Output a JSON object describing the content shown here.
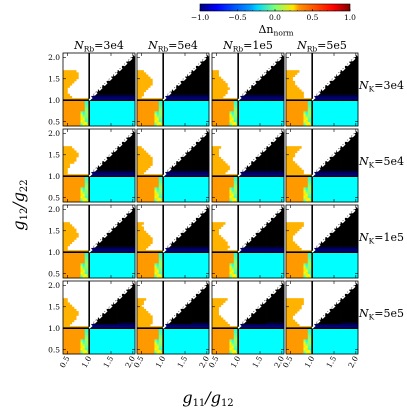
{
  "chart_data": {
    "type": "heatmap",
    "layout": "4x4 panel grid",
    "xlabel": "g₁₁/g₁₂",
    "ylabel": "g₁₂/g₂₂",
    "xlim": [
      0.4,
      2.05
    ],
    "ylim": [
      0.4,
      2.1
    ],
    "xticks": [
      "0.5",
      "1.0",
      "1.5",
      "2.0"
    ],
    "yticks": [
      "2.0",
      "1.5",
      "1.0",
      "0.5"
    ],
    "column_titles": [
      "N_Rb=3e4",
      "N_Rb=5e4",
      "N_Rb=1e5",
      "N_Rb=5e5"
    ],
    "row_titles": [
      "N_K=3e4",
      "N_K=5e4",
      "N_K=1e5",
      "N_K=5e5"
    ],
    "column_values_NRb": [
      30000,
      50000,
      100000,
      500000
    ],
    "row_values_NK": [
      30000,
      50000,
      100000,
      500000
    ],
    "colorbar": {
      "label": "Δn_norm",
      "range": [
        -1.0,
        1.0
      ],
      "ticks": [
        "−1.0",
        "−0.5",
        "0.0",
        "0.5",
        "1.0"
      ],
      "colormap": "jet",
      "position": "top-right"
    },
    "reference_lines": {
      "diagonal": "y = x (dashed, white)",
      "vertical": "x = 1.0 (solid, black)",
      "horizontal": "y = 1.0 (solid, black)"
    },
    "regions": {
      "upper_right_above_diagonal": "value ≈ -1.0 (blue)",
      "lower_right_y_below_1": "value ≈ 0.25 (green)",
      "lower_left_x_below_1": "value ≈ 0.8 to 1.0 (dark red)",
      "excluded_triangle_x_below_y": "no data (white)"
    }
  },
  "labels": {
    "xlabel_main": "g",
    "xlabel_sub1": "11",
    "xlabel_mid": "/g",
    "xlabel_sub2": "12",
    "ylabel_main": "g",
    "ylabel_sub1": "12",
    "ylabel_mid": "/g",
    "ylabel_sub2": "22",
    "cb_delta": "Δn",
    "cb_sub": "norm"
  },
  "columns": [
    {
      "prefix": "N",
      "sub": "Rb",
      "value": "=3e4"
    },
    {
      "prefix": "N",
      "sub": "Rb",
      "value": "=5e4"
    },
    {
      "prefix": "N",
      "sub": "Rb",
      "value": "=1e5"
    },
    {
      "prefix": "N",
      "sub": "Rb",
      "value": "=5e5"
    }
  ],
  "rows": [
    {
      "prefix": "N",
      "sub": "K",
      "value": "=3e4"
    },
    {
      "prefix": "N",
      "sub": "K",
      "value": "=5e4"
    },
    {
      "prefix": "N",
      "sub": "K",
      "value": "=1e5"
    },
    {
      "prefix": "N",
      "sub": "K",
      "value": "=5e5"
    }
  ]
}
